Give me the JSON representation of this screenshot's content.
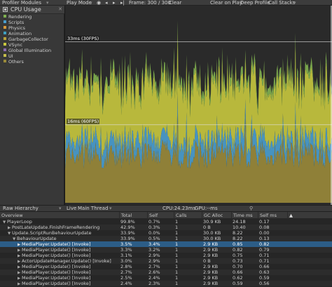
{
  "toolbar": {
    "modules_label": "Profiler Modules",
    "play_mode_label": "Play Mode",
    "frame_label": "Frame: 300 / 300",
    "clear_label": "Clear",
    "clear_on_play_label": "Clear on Play",
    "deep_profile_label": "Deep Profile",
    "call_stacks_label": "Call Stacks"
  },
  "module": {
    "title": "CPU Usage",
    "legend": [
      {
        "label": "Rendering",
        "color": "#7fb04f"
      },
      {
        "label": "Scripts",
        "color": "#4a9fd0"
      },
      {
        "label": "Physics",
        "color": "#d89a3c"
      },
      {
        "label": "Animation",
        "color": "#3fa0c0"
      },
      {
        "label": "GarbageCollector",
        "color": "#b8a23a"
      },
      {
        "label": "VSync",
        "color": "#c8c83e"
      },
      {
        "label": "Global Illumination",
        "color": "#8a6ab0"
      },
      {
        "label": "UI",
        "color": "#c4bd4a"
      },
      {
        "label": "Others",
        "color": "#9a8a3a"
      }
    ]
  },
  "chart_data": {
    "type": "area",
    "title": "",
    "xlabel": "",
    "ylabel": "",
    "guidelines": [
      "33ms (30FPS)",
      "16ms (60FPS)"
    ],
    "frames": 300,
    "series": [
      {
        "name": "Others",
        "approx_ms": [
          7,
          13
        ],
        "color": "#9a8a3a"
      },
      {
        "name": "Scripts",
        "approx_ms": [
          2,
          4
        ],
        "color": "#4a9fd0"
      },
      {
        "name": "VSync",
        "approx_ms": [
          8,
          14
        ],
        "color": "#c8c83e"
      },
      {
        "name": "Rendering",
        "approx_ms": [
          1,
          2
        ],
        "color": "#7fb04f"
      }
    ]
  },
  "detail": {
    "view_label": "Raw Hierarchy",
    "live_label": "Live",
    "thread_label": "Main Thread",
    "cpu_label": "CPU:24.23ms",
    "gpu_label": "GPU:--ms"
  },
  "table": {
    "columns": [
      "Overview",
      "Total",
      "Self",
      "Calls",
      "GC Alloc",
      "Time ms",
      "Self ms"
    ],
    "rows": [
      {
        "indent": 0,
        "arrow": "▼",
        "name": "PlayerLoop",
        "total": "99.8%",
        "self": "0.7%",
        "calls": "1",
        "gc": "30.9 KB",
        "time": "24.18",
        "selfms": "0.17"
      },
      {
        "indent": 1,
        "arrow": "▶",
        "name": "PostLateUpdate.FinishFrameRendering",
        "total": "42.9%",
        "self": "0.3%",
        "calls": "1",
        "gc": "0 B",
        "time": "10.40",
        "selfms": "0.08"
      },
      {
        "indent": 1,
        "arrow": "▼",
        "name": "Update.ScriptRunBehaviourUpdate",
        "total": "33.9%",
        "self": "0.0%",
        "calls": "1",
        "gc": "30.0 KB",
        "time": "8.22",
        "selfms": "0.00"
      },
      {
        "indent": 2,
        "arrow": "▼",
        "name": "BehaviourUpdate",
        "total": "33.9%",
        "self": "0.5%",
        "calls": "1",
        "gc": "30.0 KB",
        "time": "8.22",
        "selfms": "0.13"
      },
      {
        "indent": 3,
        "arrow": "▶",
        "name": "MediaPlayer.Update() [Invoke]",
        "total": "3.5%",
        "self": "3.4%",
        "calls": "1",
        "gc": "2.9 KB",
        "time": "0.85",
        "selfms": "0.82",
        "selected": true
      },
      {
        "indent": 3,
        "arrow": "▶",
        "name": "MediaPlayer.Update() [Invoke]",
        "total": "3.3%",
        "self": "3.2%",
        "calls": "1",
        "gc": "2.9 KB",
        "time": "0.82",
        "selfms": "0.79"
      },
      {
        "indent": 3,
        "arrow": "▶",
        "name": "MediaPlayer.Update() [Invoke]",
        "total": "3.1%",
        "self": "2.9%",
        "calls": "1",
        "gc": "2.9 KB",
        "time": "0.75",
        "selfms": "0.71"
      },
      {
        "indent": 3,
        "arrow": "▶",
        "name": "ActorUpdateManager.Update() [Invoke]",
        "total": "3.0%",
        "self": "2.9%",
        "calls": "1",
        "gc": "0 B",
        "time": "0.73",
        "selfms": "0.71"
      },
      {
        "indent": 3,
        "arrow": "▶",
        "name": "MediaPlayer.Update() [Invoke]",
        "total": "2.8%",
        "self": "2.7%",
        "calls": "1",
        "gc": "2.9 KB",
        "time": "0.70",
        "selfms": "0.66"
      },
      {
        "indent": 3,
        "arrow": "▶",
        "name": "MediaPlayer.Update() [Invoke]",
        "total": "2.7%",
        "self": "2.6%",
        "calls": "1",
        "gc": "2.9 KB",
        "time": "0.66",
        "selfms": "0.63"
      },
      {
        "indent": 3,
        "arrow": "▶",
        "name": "MediaPlayer.Update() [Invoke]",
        "total": "2.5%",
        "self": "2.4%",
        "calls": "1",
        "gc": "2.9 KB",
        "time": "0.62",
        "selfms": "0.59"
      },
      {
        "indent": 3,
        "arrow": "▶",
        "name": "MediaPlayer.Update() [Invoke]",
        "total": "2.4%",
        "self": "2.3%",
        "calls": "1",
        "gc": "2.9 KB",
        "time": "0.59",
        "selfms": "0.56"
      }
    ]
  }
}
